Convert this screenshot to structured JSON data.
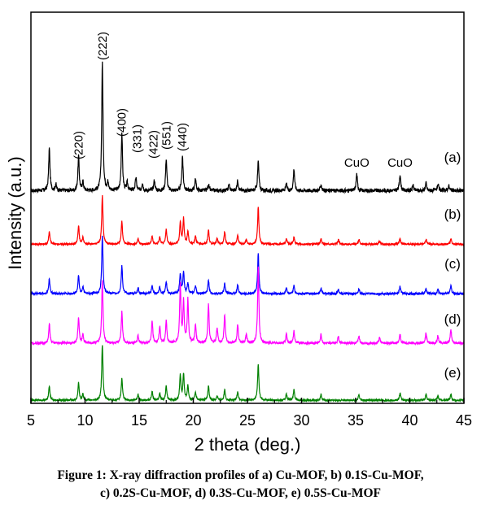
{
  "chart_data": {
    "type": "line",
    "xlabel": "2 theta (deg.)",
    "ylabel": "Intensity (a.u.)",
    "xlim": [
      5,
      45
    ],
    "xticks": [
      5,
      10,
      15,
      20,
      25,
      30,
      35,
      40,
      45
    ],
    "yticks": "none",
    "grid": false,
    "series": [
      {
        "name": "(a)",
        "color": "#000000",
        "peaks": [
          {
            "x": 6.7,
            "h": 0.33
          },
          {
            "x": 7.3,
            "h": 0.05
          },
          {
            "x": 9.4,
            "h": 0.27
          },
          {
            "x": 9.8,
            "h": 0.07
          },
          {
            "x": 11.6,
            "h": 1.0
          },
          {
            "x": 12.1,
            "h": 0.06
          },
          {
            "x": 13.4,
            "h": 0.45
          },
          {
            "x": 13.9,
            "h": 0.06
          },
          {
            "x": 14.7,
            "h": 0.1
          },
          {
            "x": 15.3,
            "h": 0.06
          },
          {
            "x": 16.4,
            "h": 0.08
          },
          {
            "x": 17.5,
            "h": 0.25
          },
          {
            "x": 19.0,
            "h": 0.27
          },
          {
            "x": 20.2,
            "h": 0.09
          },
          {
            "x": 21.4,
            "h": 0.05
          },
          {
            "x": 23.3,
            "h": 0.05
          },
          {
            "x": 24.1,
            "h": 0.08
          },
          {
            "x": 26.0,
            "h": 0.23
          },
          {
            "x": 28.6,
            "h": 0.05
          },
          {
            "x": 29.3,
            "h": 0.17
          },
          {
            "x": 31.8,
            "h": 0.05
          },
          {
            "x": 35.1,
            "h": 0.13
          },
          {
            "x": 39.1,
            "h": 0.13
          },
          {
            "x": 40.3,
            "h": 0.04
          },
          {
            "x": 41.5,
            "h": 0.06
          },
          {
            "x": 42.6,
            "h": 0.05
          },
          {
            "x": 43.6,
            "h": 0.04
          }
        ]
      },
      {
        "name": "(b)",
        "color": "#ff0000",
        "peaks": [
          {
            "x": 6.7,
            "h": 0.22
          },
          {
            "x": 9.4,
            "h": 0.32
          },
          {
            "x": 9.8,
            "h": 0.12
          },
          {
            "x": 11.6,
            "h": 0.85
          },
          {
            "x": 13.4,
            "h": 0.4
          },
          {
            "x": 14.9,
            "h": 0.1
          },
          {
            "x": 16.2,
            "h": 0.14
          },
          {
            "x": 16.9,
            "h": 0.12
          },
          {
            "x": 17.5,
            "h": 0.26
          },
          {
            "x": 18.8,
            "h": 0.38
          },
          {
            "x": 19.1,
            "h": 0.45
          },
          {
            "x": 19.5,
            "h": 0.22
          },
          {
            "x": 20.2,
            "h": 0.15
          },
          {
            "x": 21.4,
            "h": 0.25
          },
          {
            "x": 22.2,
            "h": 0.1
          },
          {
            "x": 22.9,
            "h": 0.22
          },
          {
            "x": 24.1,
            "h": 0.16
          },
          {
            "x": 24.9,
            "h": 0.08
          },
          {
            "x": 26.0,
            "h": 0.65
          },
          {
            "x": 28.6,
            "h": 0.1
          },
          {
            "x": 29.3,
            "h": 0.12
          },
          {
            "x": 31.8,
            "h": 0.1
          },
          {
            "x": 33.4,
            "h": 0.08
          },
          {
            "x": 35.3,
            "h": 0.08
          },
          {
            "x": 37.2,
            "h": 0.06
          },
          {
            "x": 39.1,
            "h": 0.1
          },
          {
            "x": 41.5,
            "h": 0.09
          },
          {
            "x": 43.8,
            "h": 0.09
          }
        ]
      },
      {
        "name": "(c)",
        "color": "#0000ff",
        "peaks": [
          {
            "x": 6.7,
            "h": 0.22
          },
          {
            "x": 9.4,
            "h": 0.28
          },
          {
            "x": 9.8,
            "h": 0.1
          },
          {
            "x": 11.6,
            "h": 0.88
          },
          {
            "x": 13.4,
            "h": 0.42
          },
          {
            "x": 14.9,
            "h": 0.09
          },
          {
            "x": 16.2,
            "h": 0.12
          },
          {
            "x": 16.9,
            "h": 0.1
          },
          {
            "x": 17.5,
            "h": 0.18
          },
          {
            "x": 18.8,
            "h": 0.3
          },
          {
            "x": 19.1,
            "h": 0.33
          },
          {
            "x": 19.5,
            "h": 0.16
          },
          {
            "x": 20.2,
            "h": 0.12
          },
          {
            "x": 21.4,
            "h": 0.2
          },
          {
            "x": 22.9,
            "h": 0.15
          },
          {
            "x": 24.1,
            "h": 0.13
          },
          {
            "x": 26.0,
            "h": 0.6
          },
          {
            "x": 28.6,
            "h": 0.09
          },
          {
            "x": 29.3,
            "h": 0.12
          },
          {
            "x": 31.8,
            "h": 0.08
          },
          {
            "x": 33.4,
            "h": 0.06
          },
          {
            "x": 35.3,
            "h": 0.07
          },
          {
            "x": 39.1,
            "h": 0.11
          },
          {
            "x": 41.5,
            "h": 0.07
          },
          {
            "x": 42.6,
            "h": 0.06
          },
          {
            "x": 43.8,
            "h": 0.12
          }
        ]
      },
      {
        "name": "(d)",
        "color": "#ff00ff",
        "peaks": [
          {
            "x": 6.7,
            "h": 0.26
          },
          {
            "x": 9.4,
            "h": 0.35
          },
          {
            "x": 9.8,
            "h": 0.12
          },
          {
            "x": 11.6,
            "h": 0.85
          },
          {
            "x": 13.4,
            "h": 0.42
          },
          {
            "x": 14.9,
            "h": 0.1
          },
          {
            "x": 16.2,
            "h": 0.3
          },
          {
            "x": 16.9,
            "h": 0.22
          },
          {
            "x": 17.5,
            "h": 0.3
          },
          {
            "x": 18.8,
            "h": 0.78
          },
          {
            "x": 19.1,
            "h": 0.55
          },
          {
            "x": 19.5,
            "h": 0.58
          },
          {
            "x": 20.2,
            "h": 0.25
          },
          {
            "x": 21.4,
            "h": 0.52
          },
          {
            "x": 22.2,
            "h": 0.2
          },
          {
            "x": 22.9,
            "h": 0.38
          },
          {
            "x": 24.1,
            "h": 0.25
          },
          {
            "x": 24.9,
            "h": 0.12
          },
          {
            "x": 26.0,
            "h": 1.02
          },
          {
            "x": 28.6,
            "h": 0.12
          },
          {
            "x": 29.3,
            "h": 0.16
          },
          {
            "x": 31.8,
            "h": 0.12
          },
          {
            "x": 33.4,
            "h": 0.09
          },
          {
            "x": 35.3,
            "h": 0.1
          },
          {
            "x": 37.2,
            "h": 0.07
          },
          {
            "x": 39.1,
            "h": 0.12
          },
          {
            "x": 41.5,
            "h": 0.14
          },
          {
            "x": 42.6,
            "h": 0.1
          },
          {
            "x": 43.8,
            "h": 0.18
          }
        ]
      },
      {
        "name": "(e)",
        "color": "#008000",
        "peaks": [
          {
            "x": 6.7,
            "h": 0.25
          },
          {
            "x": 9.4,
            "h": 0.3
          },
          {
            "x": 9.8,
            "h": 0.1
          },
          {
            "x": 11.6,
            "h": 0.95
          },
          {
            "x": 13.4,
            "h": 0.38
          },
          {
            "x": 14.9,
            "h": 0.1
          },
          {
            "x": 16.2,
            "h": 0.15
          },
          {
            "x": 16.9,
            "h": 0.12
          },
          {
            "x": 17.5,
            "h": 0.24
          },
          {
            "x": 18.8,
            "h": 0.42
          },
          {
            "x": 19.1,
            "h": 0.45
          },
          {
            "x": 19.5,
            "h": 0.25
          },
          {
            "x": 20.2,
            "h": 0.14
          },
          {
            "x": 21.4,
            "h": 0.24
          },
          {
            "x": 22.2,
            "h": 0.08
          },
          {
            "x": 22.9,
            "h": 0.18
          },
          {
            "x": 24.1,
            "h": 0.15
          },
          {
            "x": 26.0,
            "h": 0.62
          },
          {
            "x": 28.6,
            "h": 0.1
          },
          {
            "x": 29.3,
            "h": 0.18
          },
          {
            "x": 31.8,
            "h": 0.1
          },
          {
            "x": 35.3,
            "h": 0.1
          },
          {
            "x": 39.1,
            "h": 0.12
          },
          {
            "x": 41.5,
            "h": 0.1
          },
          {
            "x": 42.6,
            "h": 0.08
          },
          {
            "x": 43.8,
            "h": 0.1
          }
        ]
      }
    ],
    "annotations": [
      {
        "text": "(220)",
        "x": 9.4
      },
      {
        "text": "(222)",
        "x": 11.6
      },
      {
        "text": "(400)",
        "x": 13.4
      },
      {
        "text": "(331)",
        "x": 14.8
      },
      {
        "text": "(422)",
        "x": 16.3
      },
      {
        "text": "(551)",
        "x": 17.5
      },
      {
        "text": "(440)",
        "x": 19.0
      },
      {
        "text": "CuO",
        "x": 35.1
      },
      {
        "text": "CuO",
        "x": 39.1
      }
    ]
  },
  "caption": {
    "line1": "Figure 1: X-ray diffraction profiles of a) Cu-MOF, b) 0.1S-Cu-MOF,",
    "line2": "c) 0.2S-Cu-MOF, d) 0.3S-Cu-MOF, e) 0.5S-Cu-MOF"
  }
}
